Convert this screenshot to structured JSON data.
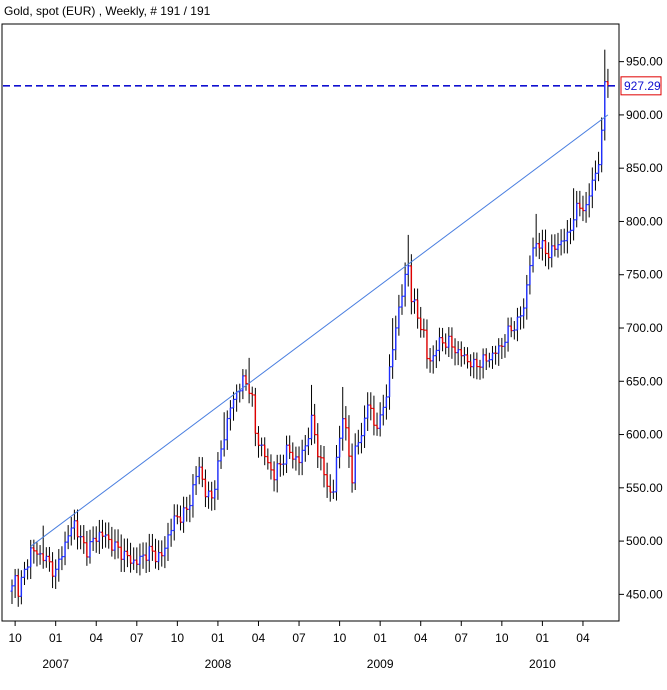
{
  "chart_data": {
    "type": "ohlc",
    "title": "Gold, spot (EUR) , Weekly, # 191 / 191",
    "ylim": [
      425,
      975
    ],
    "y_ticks": [
      "450.00",
      "500.00",
      "550.00",
      "600.00",
      "650.00",
      "700.00",
      "750.00",
      "800.00",
      "850.00",
      "900.00",
      "950.00"
    ],
    "x_ticks": [
      {
        "label": "10",
        "t": 1
      },
      {
        "label": "01",
        "t": 14
      },
      {
        "label": "04",
        "t": 27
      },
      {
        "label": "07",
        "t": 40
      },
      {
        "label": "10",
        "t": 53
      },
      {
        "label": "01",
        "t": 66
      },
      {
        "label": "04",
        "t": 79
      },
      {
        "label": "07",
        "t": 92
      },
      {
        "label": "10",
        "t": 105
      },
      {
        "label": "01",
        "t": 118
      },
      {
        "label": "04",
        "t": 131
      },
      {
        "label": "07",
        "t": 144
      },
      {
        "label": "10",
        "t": 157
      },
      {
        "label": "01",
        "t": 170
      },
      {
        "label": "04",
        "t": 183
      }
    ],
    "years": [
      {
        "label": "2007",
        "t": 14
      },
      {
        "label": "2008",
        "t": 66
      },
      {
        "label": "2009",
        "t": 118
      },
      {
        "label": "2010",
        "t": 170
      }
    ],
    "last_price": 927.29,
    "last_price_label": "927.29",
    "trendline": {
      "t0": 6,
      "v0": 495,
      "t1": 191,
      "v1": 900
    },
    "up_color": "#1f2fff",
    "down_color": "#e00000",
    "grid": false,
    "anchors": [
      [
        0,
        455
      ],
      [
        1,
        465
      ],
      [
        2,
        455
      ],
      [
        4,
        470
      ],
      [
        6,
        492
      ],
      [
        8,
        488
      ],
      [
        10,
        486
      ],
      [
        12,
        478
      ],
      [
        14,
        470
      ],
      [
        16,
        490
      ],
      [
        18,
        505
      ],
      [
        20,
        518
      ],
      [
        22,
        500
      ],
      [
        24,
        492
      ],
      [
        26,
        500
      ],
      [
        28,
        507
      ],
      [
        30,
        504
      ],
      [
        32,
        497
      ],
      [
        34,
        492
      ],
      [
        36,
        487
      ],
      [
        38,
        482
      ],
      [
        40,
        480
      ],
      [
        42,
        486
      ],
      [
        44,
        490
      ],
      [
        46,
        487
      ],
      [
        48,
        485
      ],
      [
        50,
        505
      ],
      [
        52,
        520
      ],
      [
        54,
        524
      ],
      [
        56,
        528
      ],
      [
        58,
        550
      ],
      [
        60,
        570
      ],
      [
        62,
        545
      ],
      [
        64,
        540
      ],
      [
        66,
        570
      ],
      [
        68,
        600
      ],
      [
        70,
        625
      ],
      [
        72,
        640
      ],
      [
        74,
        650
      ],
      [
        76,
        645
      ],
      [
        77,
        632
      ],
      [
        78,
        600
      ],
      [
        80,
        588
      ],
      [
        82,
        572
      ],
      [
        84,
        562
      ],
      [
        86,
        572
      ],
      [
        88,
        585
      ],
      [
        90,
        580
      ],
      [
        92,
        575
      ],
      [
        94,
        590
      ],
      [
        96,
        612
      ],
      [
        97,
        600
      ],
      [
        98,
        585
      ],
      [
        100,
        562
      ],
      [
        102,
        545
      ],
      [
        103,
        548
      ],
      [
        104,
        575
      ],
      [
        106,
        620
      ],
      [
        107,
        600
      ],
      [
        108,
        580
      ],
      [
        109,
        560
      ],
      [
        110,
        585
      ],
      [
        112,
        600
      ],
      [
        114,
        630
      ],
      [
        116,
        610
      ],
      [
        118,
        612
      ],
      [
        120,
        640
      ],
      [
        122,
        680
      ],
      [
        124,
        720
      ],
      [
        126,
        745
      ],
      [
        127,
        760
      ],
      [
        128,
        730
      ],
      [
        130,
        710
      ],
      [
        132,
        695
      ],
      [
        133,
        672
      ],
      [
        134,
        668
      ],
      [
        136,
        682
      ],
      [
        138,
        688
      ],
      [
        140,
        686
      ],
      [
        142,
        680
      ],
      [
        144,
        675
      ],
      [
        146,
        670
      ],
      [
        148,
        664
      ],
      [
        150,
        668
      ],
      [
        152,
        670
      ],
      [
        154,
        675
      ],
      [
        156,
        680
      ],
      [
        158,
        690
      ],
      [
        160,
        700
      ],
      [
        162,
        705
      ],
      [
        164,
        720
      ],
      [
        166,
        760
      ],
      [
        168,
        782
      ],
      [
        170,
        775
      ],
      [
        172,
        770
      ],
      [
        174,
        775
      ],
      [
        176,
        782
      ],
      [
        178,
        785
      ],
      [
        180,
        805
      ],
      [
        182,
        815
      ],
      [
        184,
        812
      ],
      [
        186,
        838
      ],
      [
        188,
        855
      ],
      [
        189,
        880
      ],
      [
        190,
        935
      ],
      [
        191,
        927
      ]
    ]
  }
}
